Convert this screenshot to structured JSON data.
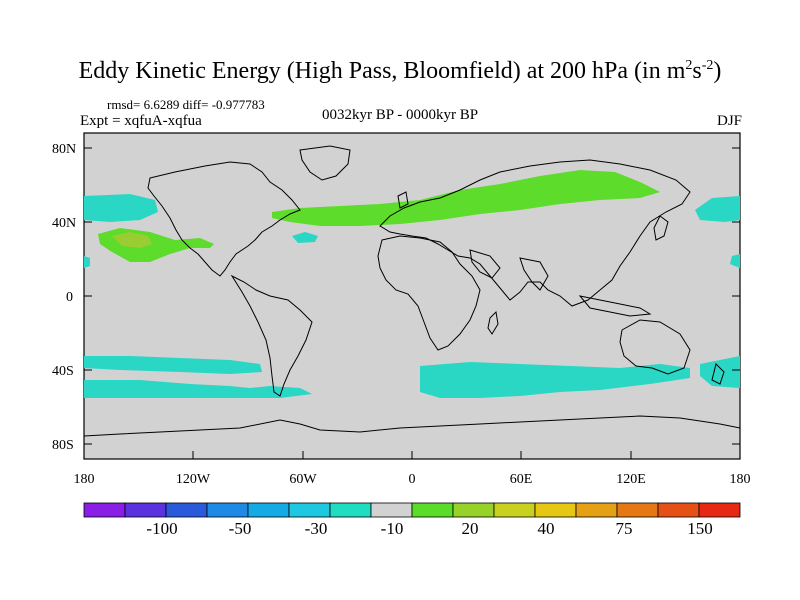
{
  "title": "Eddy Kinetic Energy (High Pass, Bloomfield) at 200 hPa (in m",
  "title_units": {
    "base_m_exp": "2",
    "s": "s",
    "s_exp": "-2",
    "close": ")"
  },
  "stats": "rmsd= 6.6289  diff= -0.977783",
  "experiment": "Expt = xqfuA-xqfua",
  "period": "0032kyr BP - 0000kyr BP",
  "season": "DJF",
  "lat_ticks": [
    "80N",
    "40N",
    "0",
    "40S",
    "80S"
  ],
  "lon_ticks": [
    "180",
    "120W",
    "60W",
    "0",
    "60E",
    "120E",
    "180"
  ],
  "colorbar": {
    "labels": [
      "-100",
      "-50",
      "-30",
      "-10",
      "20",
      "40",
      "75",
      "150"
    ],
    "colors": [
      "#8a1ee6",
      "#5a32e0",
      "#2a5adc",
      "#1e8ae6",
      "#14aae6",
      "#1ec8e0",
      "#20dcc0",
      "#d2d2d2",
      "#5adc28",
      "#96d228",
      "#c8d21e",
      "#e6c814",
      "#e6a014",
      "#e67814",
      "#e65014",
      "#e62814"
    ]
  },
  "map": {
    "background": "#d2d2d2",
    "cyan": "#2ad6c4",
    "green": "#5ddc2b",
    "yellowgreen": "#9acd32"
  }
}
